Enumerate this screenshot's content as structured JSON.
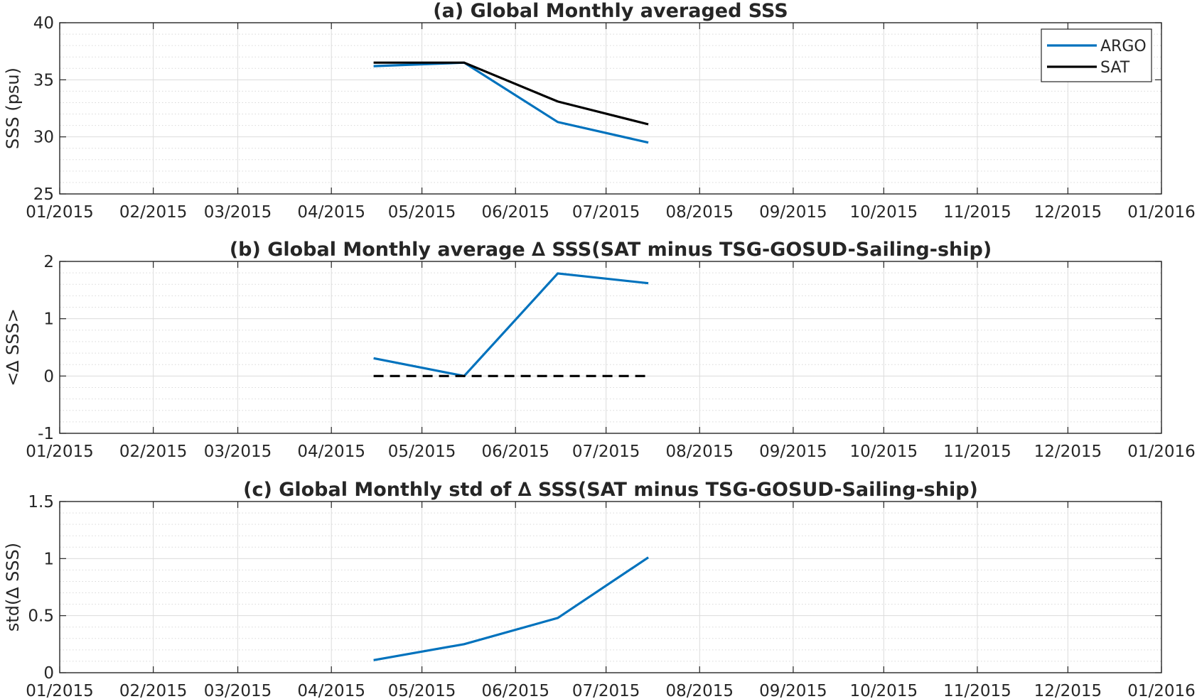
{
  "chart_data": [
    {
      "type": "line",
      "title": "(a) Global Monthly averaged SSS",
      "xlabel": "",
      "ylabel": "SSS (psu)",
      "x_axis": "date",
      "xlim": [
        "2015-01-01",
        "2016-01-01"
      ],
      "ylim": [
        25,
        40
      ],
      "x_ticks": [
        "01/2015",
        "02/2015",
        "03/2015",
        "04/2015",
        "05/2015",
        "06/2015",
        "07/2015",
        "08/2015",
        "09/2015",
        "10/2015",
        "11/2015",
        "12/2015",
        "01/2016"
      ],
      "y_ticks": [
        "25",
        "30",
        "35",
        "40"
      ],
      "grid": true,
      "minor_grid": true,
      "legend": {
        "position": "top-right",
        "entries": [
          "ARGO",
          "SAT"
        ]
      },
      "x": [
        "2015-04-15",
        "2015-05-15",
        "2015-06-15",
        "2015-07-15"
      ],
      "series": [
        {
          "name": "ARGO",
          "color": "#0072BD",
          "style": "solid",
          "values": [
            36.2,
            36.5,
            31.3,
            29.5
          ]
        },
        {
          "name": "SAT",
          "color": "#000000",
          "style": "solid",
          "values": [
            36.5,
            36.5,
            33.1,
            31.1
          ]
        }
      ]
    },
    {
      "type": "line",
      "title": "(b) Global Monthly average ∆ SSS(SAT minus TSG-GOSUD-Sailing-ship)",
      "xlabel": "",
      "ylabel": "<∆ SSS>",
      "x_axis": "date",
      "xlim": [
        "2015-01-01",
        "2016-01-01"
      ],
      "ylim": [
        -1,
        2
      ],
      "x_ticks": [
        "01/2015",
        "02/2015",
        "03/2015",
        "04/2015",
        "05/2015",
        "06/2015",
        "07/2015",
        "08/2015",
        "09/2015",
        "10/2015",
        "11/2015",
        "12/2015",
        "01/2016"
      ],
      "y_ticks": [
        "-1",
        "0",
        "1",
        "2"
      ],
      "grid": true,
      "minor_grid": true,
      "x": [
        "2015-04-15",
        "2015-05-15",
        "2015-06-15",
        "2015-07-15"
      ],
      "series": [
        {
          "color": "#0072BD",
          "style": "solid",
          "values": [
            0.31,
            0.0,
            1.79,
            1.62
          ]
        },
        {
          "color": "#000000",
          "style": "dashed",
          "values": [
            0,
            0,
            0,
            0
          ]
        }
      ]
    },
    {
      "type": "line",
      "title": "(c) Global Monthly std of ∆ SSS(SAT minus TSG-GOSUD-Sailing-ship)",
      "xlabel": "",
      "ylabel": "std(∆ SSS)",
      "x_axis": "date",
      "xlim": [
        "2015-01-01",
        "2016-01-01"
      ],
      "ylim": [
        0,
        1.5
      ],
      "x_ticks": [
        "01/2015",
        "02/2015",
        "03/2015",
        "04/2015",
        "05/2015",
        "06/2015",
        "07/2015",
        "08/2015",
        "09/2015",
        "10/2015",
        "11/2015",
        "12/2015",
        "01/2016"
      ],
      "y_ticks": [
        "0",
        "0.5",
        "1",
        "1.5"
      ],
      "grid": true,
      "minor_grid": true,
      "x": [
        "2015-04-15",
        "2015-05-15",
        "2015-06-15",
        "2015-07-15"
      ],
      "series": [
        {
          "color": "#0072BD",
          "style": "solid",
          "values": [
            0.11,
            0.25,
            0.48,
            1.01
          ]
        }
      ]
    }
  ]
}
